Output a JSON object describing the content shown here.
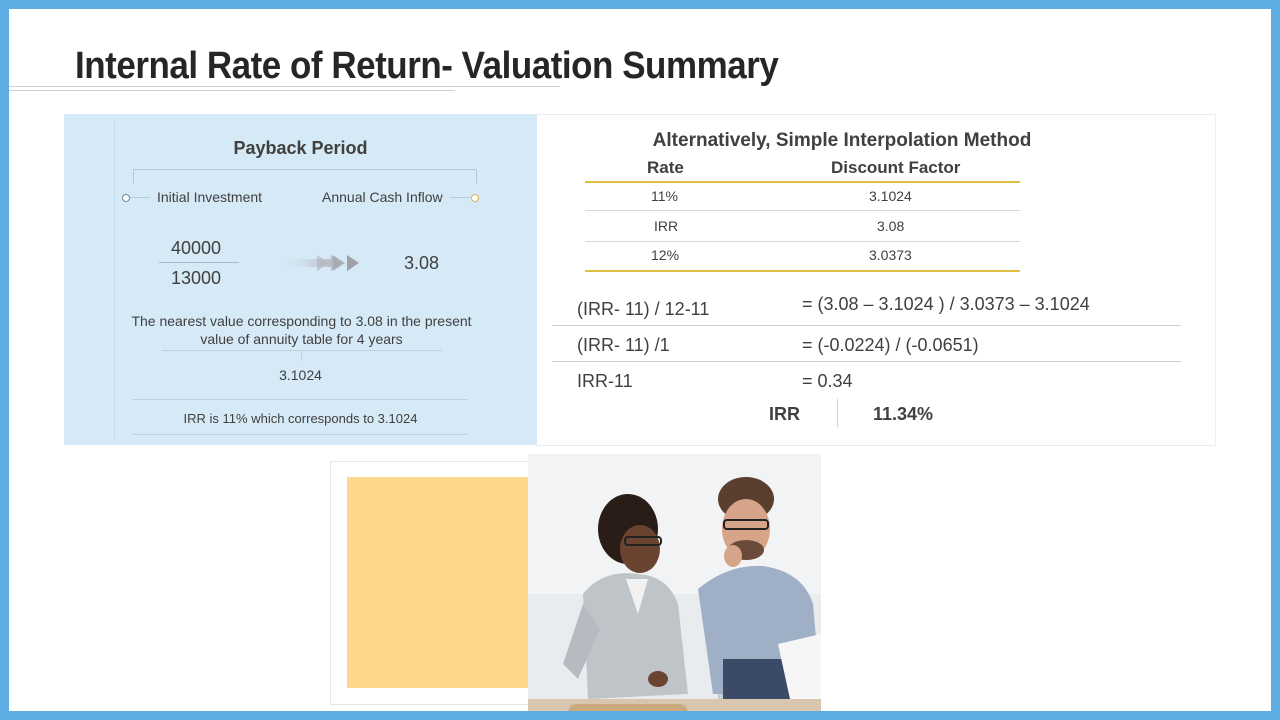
{
  "page": {
    "title": "Internal Rate of Return- Valuation Summary"
  },
  "payback": {
    "title": "Payback Period",
    "label_initial": "Initial Investment",
    "label_inflow": "Annual Cash Inflow",
    "numerator": "40000",
    "denominator": "13000",
    "result": "3.08",
    "note": "The nearest value corresponding to 3.08 in the present value of annuity table for 4 years",
    "table_value": "3.1024",
    "irr_note": "IRR is 11% which corresponds to 3.1024"
  },
  "interpolation": {
    "title": "Alternatively,  Simple Interpolation Method",
    "col_rate": "Rate",
    "col_df": "Discount Factor",
    "rows": [
      {
        "rate": "11%",
        "df": "3.1024"
      },
      {
        "rate": "IRR",
        "df": "3.08"
      },
      {
        "rate": "12%",
        "df": "3.0373"
      }
    ],
    "equations": [
      {
        "left": "(IRR- 11) / 12-11",
        "right": "= (3.08 – 3.1024 ) / 3.0373 – 3.1024"
      },
      {
        "left": "(IRR- 11) /1",
        "right": "= (-0.0224) / (-0.0651)"
      },
      {
        "left": "IRR-11",
        "right": "= 0.34"
      }
    ],
    "irr_label": "IRR",
    "irr_value": "11.34%"
  },
  "colors": {
    "border": "#5dade2",
    "panel": "#d6e9f6",
    "accent_gold": "#e0c040",
    "yellow_block": "#fdd88a"
  }
}
